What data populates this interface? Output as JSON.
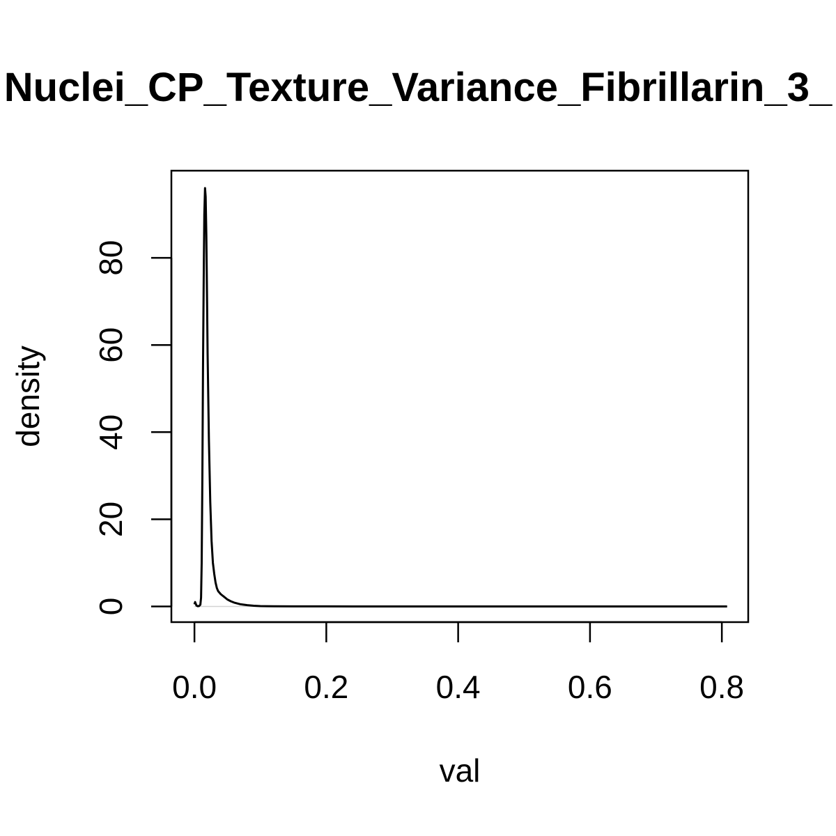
{
  "chart_data": {
    "type": "line",
    "title": "Nuclei_CP_Texture_Variance_Fibrillarin_3_",
    "xlabel": "val",
    "ylabel": "density",
    "xlim": [
      -0.035,
      0.84
    ],
    "ylim": [
      -3.6,
      100
    ],
    "x_ticks": [
      0.0,
      0.2,
      0.4,
      0.6,
      0.8
    ],
    "x_tick_labels": [
      "0.0",
      "0.2",
      "0.4",
      "0.6",
      "0.8"
    ],
    "y_ticks": [
      0,
      20,
      40,
      60,
      80
    ],
    "y_tick_labels": [
      "0",
      "20",
      "40",
      "60",
      "80"
    ],
    "grid": false,
    "baseline": 0,
    "colors": {
      "line": "#000000",
      "baseline": "#d3d3d3"
    },
    "series": [
      {
        "x": [
          0.0,
          0.001,
          0.002,
          0.003,
          0.005,
          0.007,
          0.009,
          0.01,
          0.011,
          0.012,
          0.013,
          0.014,
          0.015,
          0.016,
          0.017,
          0.018,
          0.019,
          0.02,
          0.022,
          0.024,
          0.026,
          0.028,
          0.03,
          0.032,
          0.034,
          0.036,
          0.04,
          0.045,
          0.05,
          0.055,
          0.06,
          0.07,
          0.08,
          0.09,
          0.1,
          0.12,
          0.15,
          0.2,
          0.3,
          0.4,
          0.5,
          0.6,
          0.7,
          0.808
        ],
        "y": [
          0.5,
          1.0,
          0.6,
          0.2,
          0.05,
          0.1,
          0.4,
          2.0,
          10.0,
          30.0,
          55.0,
          75.0,
          90.0,
          96.0,
          94.0,
          85.0,
          72.0,
          58.0,
          38.0,
          24.0,
          15.0,
          10.0,
          7.5,
          5.5,
          4.2,
          3.5,
          2.8,
          2.2,
          1.6,
          1.2,
          0.9,
          0.5,
          0.3,
          0.15,
          0.08,
          0.04,
          0.02,
          0.01,
          0.005,
          0.003,
          0.002,
          0.001,
          0.001,
          0.0
        ]
      }
    ]
  }
}
